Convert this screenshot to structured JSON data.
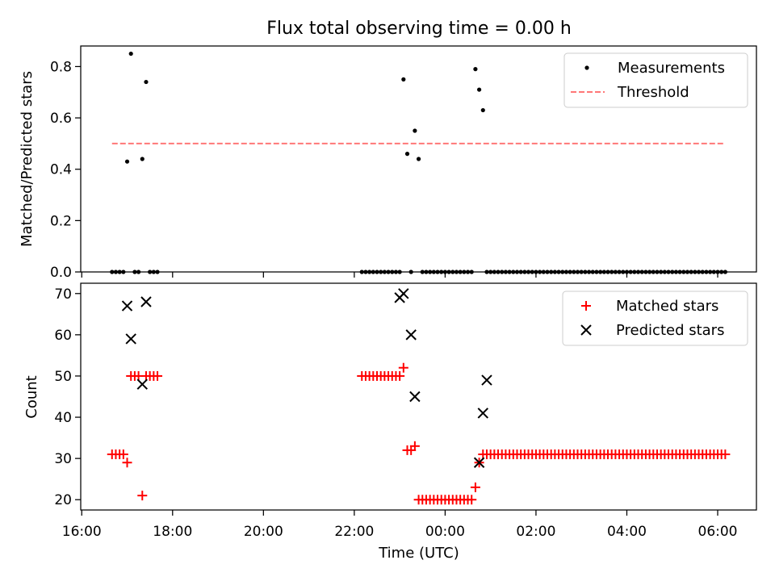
{
  "chart_data": [
    {
      "type": "scatter",
      "title": "Flux total observing time = 0.00 h",
      "xlabel": "",
      "ylabel": "Matched/Predicted stars",
      "xlim": [
        "16:00",
        "06:00"
      ],
      "ylim": [
        0,
        0.88
      ],
      "yticks": [
        "0.0",
        "0.2",
        "0.4",
        "0.6",
        "0.8"
      ],
      "legend_position": "top-right",
      "series": [
        {
          "name": "Measurements",
          "marker": "dot",
          "color": "#000000",
          "x": [
            "16:40",
            "16:45",
            "16:50",
            "16:55",
            "17:00",
            "17:05",
            "17:10",
            "17:15",
            "17:20",
            "17:25",
            "17:30",
            "17:35",
            "17:40",
            "22:10",
            "22:15",
            "22:20",
            "22:25",
            "22:30",
            "22:35",
            "22:40",
            "22:45",
            "22:50",
            "22:55",
            "23:00",
            "23:05",
            "23:10",
            "23:15",
            "23:20",
            "23:25",
            "23:30",
            "23:35",
            "23:40",
            "23:45",
            "23:50",
            "23:55",
            "00:00",
            "00:05",
            "00:10",
            "00:15",
            "00:20",
            "00:25",
            "00:30",
            "00:35",
            "00:40",
            "00:45",
            "00:50",
            "00:55",
            "01:00",
            "01:05",
            "01:10",
            "01:15",
            "01:20",
            "01:25",
            "01:30",
            "01:35",
            "01:40",
            "01:45",
            "01:50",
            "01:55",
            "02:00",
            "02:05",
            "02:10",
            "02:15",
            "02:20",
            "02:25",
            "02:30",
            "02:35",
            "02:40",
            "02:45",
            "02:50",
            "02:55",
            "03:00",
            "03:05",
            "03:10",
            "03:15",
            "03:20",
            "03:25",
            "03:30",
            "03:35",
            "03:40",
            "03:45",
            "03:50",
            "03:55",
            "04:00",
            "04:05",
            "04:10",
            "04:15",
            "04:20",
            "04:25",
            "04:30",
            "04:35",
            "04:40",
            "04:45",
            "04:50",
            "04:55",
            "05:00",
            "05:05",
            "05:10",
            "05:15",
            "05:20",
            "05:25",
            "05:30",
            "05:35",
            "05:40",
            "05:45",
            "05:50",
            "05:55",
            "06:00",
            "06:05",
            "06:10"
          ],
          "y": [
            0,
            0,
            0,
            0,
            0.43,
            0.85,
            0,
            0,
            0.44,
            0.74,
            0,
            0,
            0,
            0,
            0,
            0,
            0,
            0,
            0,
            0,
            0,
            0,
            0,
            0,
            0.75,
            0.46,
            0,
            0.55,
            0.44,
            0,
            0,
            0,
            0,
            0,
            0,
            0,
            0,
            0,
            0,
            0,
            0,
            0,
            0,
            0.79,
            0.71,
            0.63,
            0,
            0,
            0,
            0,
            0,
            0,
            0,
            0,
            0,
            0,
            0,
            0,
            0,
            0,
            0,
            0,
            0,
            0,
            0,
            0,
            0,
            0,
            0,
            0,
            0,
            0,
            0,
            0,
            0,
            0,
            0,
            0,
            0,
            0,
            0,
            0,
            0,
            0,
            0,
            0,
            0,
            0,
            0,
            0,
            0,
            0,
            0,
            0,
            0,
            0,
            0,
            0,
            0,
            0,
            0,
            0,
            0,
            0,
            0,
            0,
            0,
            0,
            0,
            0
          ]
        },
        {
          "name": "Threshold",
          "line": "dashed",
          "color": "#ff7777",
          "x": [
            "16:40",
            "06:10"
          ],
          "y": [
            0.5,
            0.5
          ]
        }
      ]
    },
    {
      "type": "scatter",
      "title": "",
      "xlabel": "Time (UTC)",
      "ylabel": "Count",
      "xlim": [
        "16:00",
        "06:00"
      ],
      "ylim": [
        17.5,
        72.5
      ],
      "xticks": [
        "16:00",
        "18:00",
        "20:00",
        "22:00",
        "00:00",
        "02:00",
        "04:00",
        "06:00"
      ],
      "yticks": [
        "20",
        "30",
        "40",
        "50",
        "60",
        "70"
      ],
      "legend_position": "top-right",
      "series": [
        {
          "name": "Matched stars",
          "marker": "plus",
          "color": "#ff0000",
          "x": [
            "16:40",
            "16:45",
            "16:50",
            "16:55",
            "17:00",
            "17:05",
            "17:10",
            "17:15",
            "17:20",
            "17:25",
            "17:30",
            "17:35",
            "17:40",
            "22:10",
            "22:15",
            "22:20",
            "22:25",
            "22:30",
            "22:35",
            "22:40",
            "22:45",
            "22:50",
            "22:55",
            "23:00",
            "23:05",
            "23:10",
            "23:15",
            "23:20",
            "23:25",
            "23:30",
            "23:35",
            "23:40",
            "23:45",
            "23:50",
            "23:55",
            "00:00",
            "00:05",
            "00:10",
            "00:15",
            "00:20",
            "00:25",
            "00:30",
            "00:35",
            "00:40",
            "00:45",
            "00:50",
            "00:55",
            "01:00",
            "01:05",
            "01:10",
            "01:15",
            "01:20",
            "01:25",
            "01:30",
            "01:35",
            "01:40",
            "01:45",
            "01:50",
            "01:55",
            "02:00",
            "02:05",
            "02:10",
            "02:15",
            "02:20",
            "02:25",
            "02:30",
            "02:35",
            "02:40",
            "02:45",
            "02:50",
            "02:55",
            "03:00",
            "03:05",
            "03:10",
            "03:15",
            "03:20",
            "03:25",
            "03:30",
            "03:35",
            "03:40",
            "03:45",
            "03:50",
            "03:55",
            "04:00",
            "04:05",
            "04:10",
            "04:15",
            "04:20",
            "04:25",
            "04:30",
            "04:35",
            "04:40",
            "04:45",
            "04:50",
            "04:55",
            "05:00",
            "05:05",
            "05:10",
            "05:15",
            "05:20",
            "05:25",
            "05:30",
            "05:35",
            "05:40",
            "05:45",
            "05:50",
            "05:55",
            "06:00",
            "06:05",
            "06:10"
          ],
          "y": [
            31,
            31,
            31,
            31,
            29,
            50,
            50,
            50,
            21,
            50,
            50,
            50,
            50,
            50,
            50,
            50,
            50,
            50,
            50,
            50,
            50,
            50,
            50,
            50,
            52,
            32,
            32,
            33,
            20,
            20,
            20,
            20,
            20,
            20,
            20,
            20,
            20,
            20,
            20,
            20,
            20,
            20,
            20,
            23,
            29,
            31,
            31,
            31,
            31,
            31,
            31,
            31,
            31,
            31,
            31,
            31,
            31,
            31,
            31,
            31,
            31,
            31,
            31,
            31,
            31,
            31,
            31,
            31,
            31,
            31,
            31,
            31,
            31,
            31,
            31,
            31,
            31,
            31,
            31,
            31,
            31,
            31,
            31,
            31,
            31,
            31,
            31,
            31,
            31,
            31,
            31,
            31,
            31,
            31,
            31,
            31,
            31,
            31,
            31,
            31,
            31,
            31,
            31,
            31,
            31,
            31,
            31,
            31,
            31,
            31
          ]
        },
        {
          "name": "Predicted stars",
          "marker": "x",
          "color": "#000000",
          "x": [
            "17:00",
            "17:05",
            "17:20",
            "17:25",
            "23:00",
            "23:05",
            "23:15",
            "23:20",
            "00:45",
            "00:50",
            "00:55"
          ],
          "y": [
            67,
            59,
            48,
            68,
            69,
            70,
            60,
            45,
            29,
            41,
            49
          ]
        }
      ]
    }
  ]
}
